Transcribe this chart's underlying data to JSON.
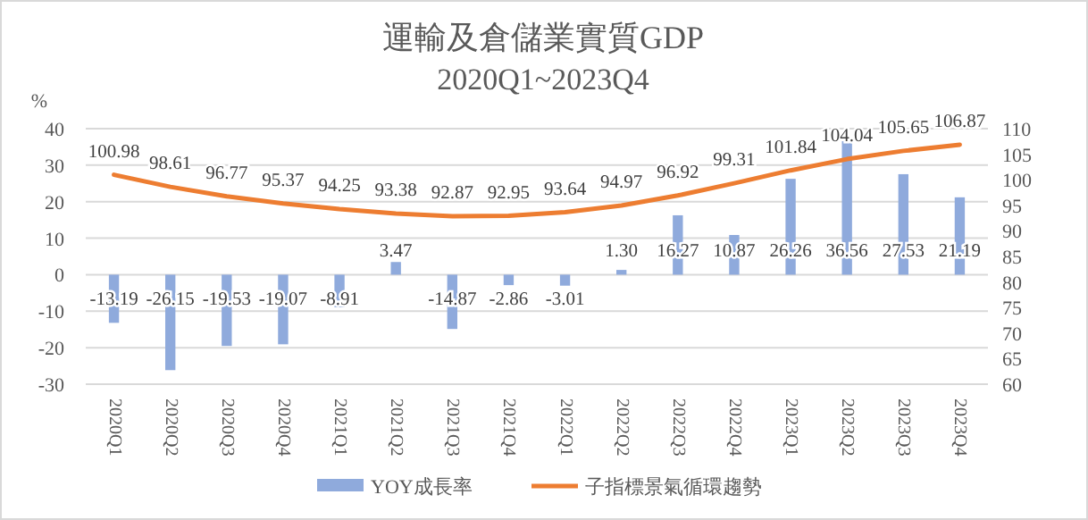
{
  "chart_data": {
    "type": "bar",
    "title": "運輸及倉儲業實質GDP",
    "subtitle": "2020Q1~2023Q4",
    "ylabel": "%",
    "categories": [
      "2020Q1",
      "2020Q2",
      "2020Q3",
      "2020Q4",
      "2021Q1",
      "2021Q2",
      "2021Q3",
      "2021Q4",
      "2022Q1",
      "2022Q2",
      "2022Q3",
      "2022Q4",
      "2023Q1",
      "2023Q2",
      "2023Q3",
      "2023Q4"
    ],
    "series": [
      {
        "name": "YOY成長率",
        "color": "#8faadc",
        "values": [
          -13.19,
          -26.15,
          -19.53,
          -19.07,
          -8.91,
          3.47,
          -14.87,
          -2.86,
          -3.01,
          1.3,
          16.27,
          10.87,
          26.26,
          36.56,
          27.53,
          21.19
        ],
        "value_labels": [
          "-13.19",
          "-26.15",
          "-19.53",
          "-19.07",
          "-8.91",
          "3.47",
          "-14.87",
          "-2.86",
          "-3.01",
          "1.30",
          "16.27",
          "10.87",
          "26.26",
          "36.56",
          "27.53",
          "21.19"
        ]
      },
      {
        "name": "子指標景氣循環趨勢",
        "type": "line",
        "axis": "y2",
        "color": "#ed7d31",
        "values": [
          100.98,
          98.61,
          96.77,
          95.37,
          94.25,
          93.38,
          92.87,
          92.95,
          93.64,
          94.97,
          96.92,
          99.31,
          101.84,
          104.04,
          105.65,
          106.87
        ],
        "value_labels": [
          "100.98",
          "98.61",
          "96.77",
          "95.37",
          "94.25",
          "93.38",
          "92.87",
          "92.95",
          "93.64",
          "94.97",
          "96.92",
          "99.31",
          "101.84",
          "104.04",
          "105.65",
          "106.87"
        ]
      }
    ],
    "ylim": [
      -30,
      40
    ],
    "yticks": [
      -30,
      -20,
      -10,
      0,
      10,
      20,
      30,
      40
    ],
    "y2lim": [
      60,
      110
    ],
    "y2ticks": [
      60,
      65,
      70,
      75,
      80,
      85,
      90,
      95,
      100,
      105,
      110
    ],
    "grid": "y",
    "legend": "bottom",
    "marker": "none",
    "line_style": "solid"
  }
}
